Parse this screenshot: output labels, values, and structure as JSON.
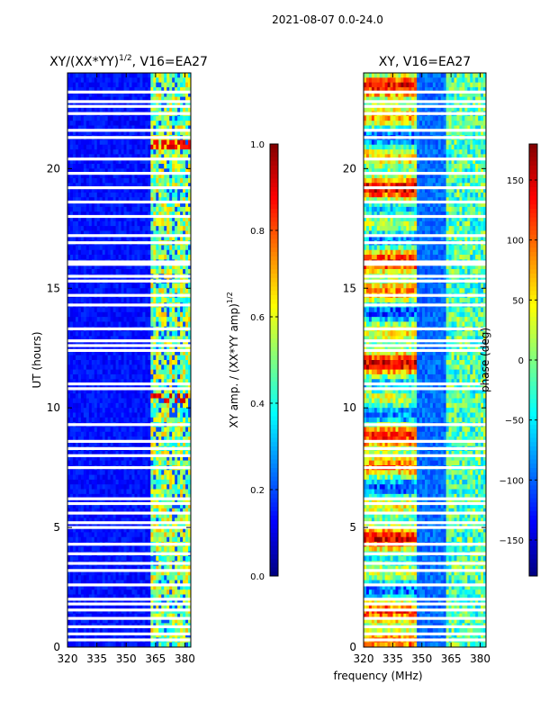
{
  "figure_title": "2021-08-07 0.0-24.0",
  "chart_data": [
    {
      "type": "heatmap",
      "title": "XY/(XX*YY)^{1/2}, V16=EA27",
      "title_base": "XY/(XX*YY)",
      "title_sup": "1/2",
      "title_rest": ", V16=EA27",
      "xlabel": "",
      "ylabel": "UT (hours)",
      "xlim": [
        320,
        383
      ],
      "ylim": [
        0,
        24
      ],
      "xticks": [
        320,
        335,
        350,
        365,
        380
      ],
      "yticks": [
        0,
        5,
        10,
        15,
        20
      ],
      "description_values": "normalized amplitude mostly ~0.1-0.2 below 362 MHz, 0.4-0.7 in 362-383 MHz band, peaks ~0.9 near 10.5 h and 21 h",
      "colorbar": {
        "label_base": "XY amp. / (XX*YY amp)",
        "label_sup": "1/2",
        "range": [
          0.0,
          1.0
        ],
        "ticks": [
          "0.0",
          "0.2",
          "0.4",
          "0.6",
          "0.8",
          "1.0"
        ]
      }
    },
    {
      "type": "heatmap",
      "title": "XY, V16=EA27",
      "xlabel": "frequency (MHz)",
      "ylabel": "",
      "xlim": [
        320,
        383
      ],
      "ylim": [
        0,
        24
      ],
      "xticks": [
        320,
        335,
        350,
        365,
        380
      ],
      "yticks": [
        0,
        5,
        10,
        15,
        20
      ],
      "description_values": "phase varies across range; warm (90-180 deg) bands near 325-345 MHz, cool (-150 to -50 deg) elsewhere",
      "colorbar": {
        "label": "phase (deg)",
        "range": [
          -180,
          180
        ],
        "ticks": [
          "-150",
          "-100",
          "-50",
          "0",
          "50",
          "100",
          "150"
        ]
      }
    }
  ],
  "gaps_hours": [
    0.3,
    0.55,
    0.85,
    1.2,
    1.55,
    1.8,
    2.0,
    2.6,
    3.2,
    3.5,
    3.9,
    4.3,
    5.0,
    5.2,
    5.6,
    6.0,
    6.2,
    7.5,
    8.0,
    8.3,
    8.6,
    9.3,
    10.8,
    11.0,
    12.4,
    12.6,
    12.8,
    13.3,
    14.3,
    14.7,
    15.3,
    15.5,
    16.0,
    16.1,
    16.9,
    17.2,
    18.0,
    18.6,
    19.2,
    19.8,
    20.4,
    21.3,
    21.6,
    22.3,
    22.6,
    22.8,
    23.2
  ]
}
